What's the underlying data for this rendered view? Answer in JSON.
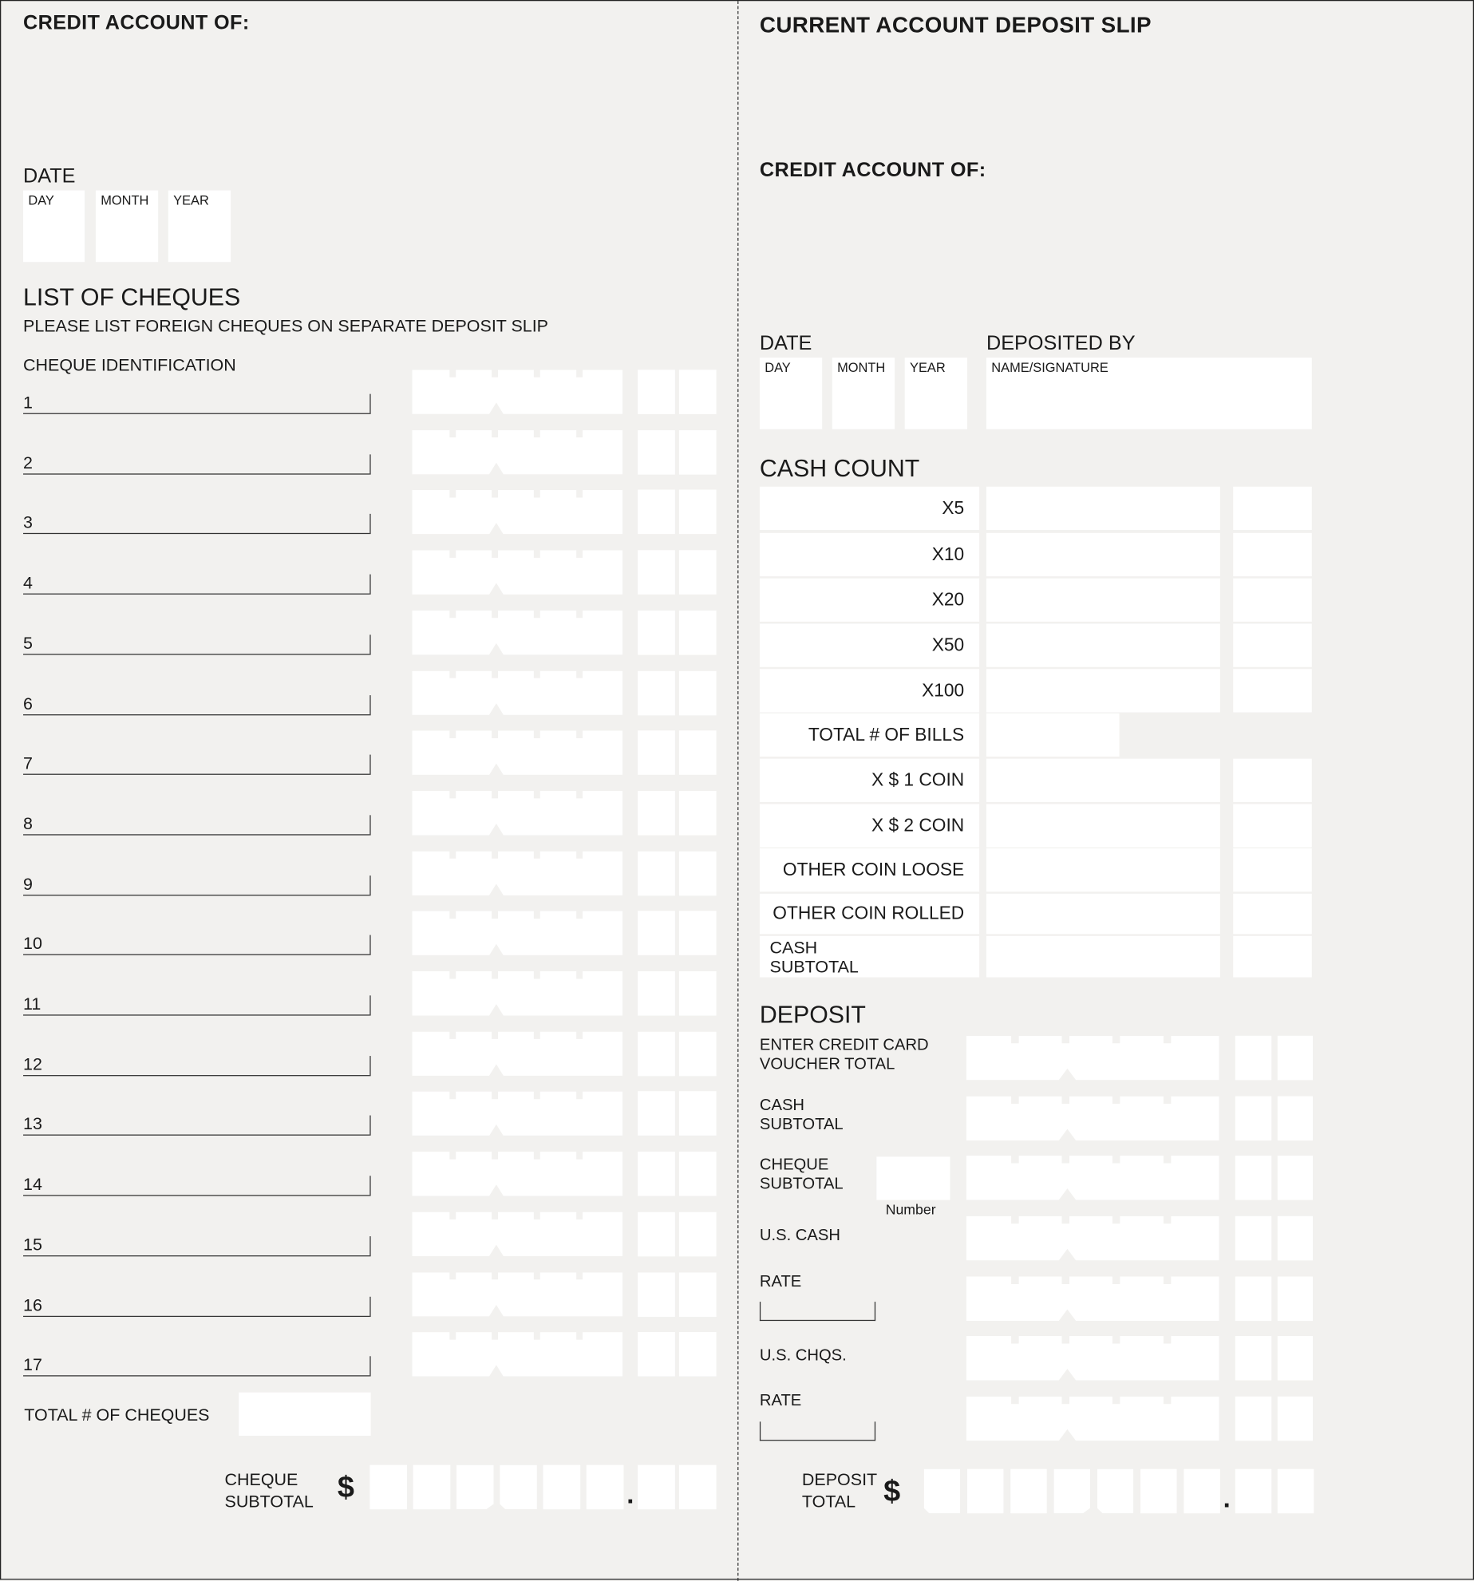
{
  "left": {
    "credit_account_label": "CREDIT ACCOUNT OF:",
    "date_label": "DATE",
    "date_fields": [
      "DAY",
      "MONTH",
      "YEAR"
    ],
    "list_title": "LIST OF CHEQUES",
    "list_note": "PLEASE LIST FOREIGN CHEQUES ON SEPARATE DEPOSIT SLIP",
    "cheque_id_label": "CHEQUE IDENTIFICATION",
    "cheque_rows": [
      "1",
      "2",
      "3",
      "4",
      "5",
      "6",
      "7",
      "8",
      "9",
      "10",
      "11",
      "12",
      "13",
      "14",
      "15",
      "16",
      "17"
    ],
    "total_cheques_label": "TOTAL # OF CHEQUES",
    "subtotal_line1": "CHEQUE",
    "subtotal_line2": "SUBTOTAL",
    "currency": "$",
    "decimal": "."
  },
  "right": {
    "title": "CURRENT ACCOUNT DEPOSIT SLIP",
    "credit_account_label": "CREDIT ACCOUNT OF:",
    "date_label": "DATE",
    "date_fields": [
      "DAY",
      "MONTH",
      "YEAR"
    ],
    "deposited_by_label": "DEPOSITED BY",
    "name_signature_label": "NAME/SIGNATURE",
    "cash_count_title": "CASH COUNT",
    "cash_rows": [
      "X5",
      "X10",
      "X20",
      "X50",
      "X100",
      "TOTAL # OF BILLS",
      "X $ 1 COIN",
      "X $ 2 COIN",
      "OTHER COIN LOOSE",
      "OTHER COIN ROLLED"
    ],
    "cash_subtotal_line1": "CASH",
    "cash_subtotal_line2": "SUBTOTAL",
    "deposit_title": "DEPOSIT",
    "deposit_rows": [
      {
        "line1": "ENTER CREDIT CARD",
        "line2": "VOUCHER TOTAL"
      },
      {
        "line1": "CASH",
        "line2": "SUBTOTAL"
      },
      {
        "line1": "CHEQUE",
        "line2": "SUBTOTAL"
      },
      {
        "line1": "U.S. CASH",
        "line2": ""
      },
      {
        "line1": "RATE",
        "line2": ""
      },
      {
        "line1": "U.S. CHQS.",
        "line2": ""
      },
      {
        "line1": "RATE",
        "line2": ""
      }
    ],
    "number_label": "Number",
    "total_line1": "DEPOSIT",
    "total_line2": "TOTAL",
    "currency": "$",
    "decimal": "."
  }
}
